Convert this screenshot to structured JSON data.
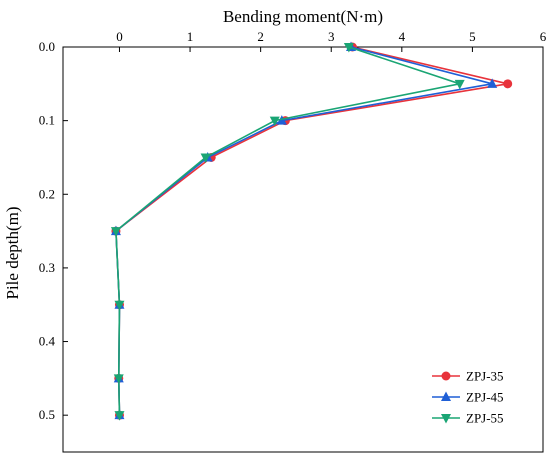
{
  "chart_data": {
    "type": "line",
    "title": "",
    "xlabel": "Bending moment(N·m)",
    "ylabel": "Pile depth(m)",
    "x_axis_position": "top",
    "y_axis_inverted": true,
    "xlim": [
      -0.8,
      6
    ],
    "ylim": [
      0,
      0.55
    ],
    "x_ticks": [
      0,
      1,
      2,
      3,
      4,
      5,
      6
    ],
    "y_ticks": [
      0.0,
      0.1,
      0.2,
      0.3,
      0.4,
      0.5
    ],
    "y_tick_labels": [
      "0.0",
      "0.1",
      "0.2",
      "0.3",
      "0.4",
      "0.5"
    ],
    "grid": false,
    "legend_position": "bottom-right",
    "series": [
      {
        "name": "ZPJ-35",
        "color": "#e8333b",
        "marker": "circle",
        "points": [
          {
            "depth": 0.0,
            "moment": 3.3
          },
          {
            "depth": 0.05,
            "moment": 5.5
          },
          {
            "depth": 0.1,
            "moment": 2.35
          },
          {
            "depth": 0.15,
            "moment": 1.3
          },
          {
            "depth": 0.25,
            "moment": -0.05
          },
          {
            "depth": 0.35,
            "moment": 0.0
          },
          {
            "depth": 0.45,
            "moment": -0.01
          },
          {
            "depth": 0.5,
            "moment": 0.0
          }
        ]
      },
      {
        "name": "ZPJ-45",
        "color": "#1f5fd6",
        "marker": "triangle-up",
        "points": [
          {
            "depth": 0.0,
            "moment": 3.28
          },
          {
            "depth": 0.05,
            "moment": 5.28
          },
          {
            "depth": 0.1,
            "moment": 2.3
          },
          {
            "depth": 0.15,
            "moment": 1.25
          },
          {
            "depth": 0.25,
            "moment": -0.05
          },
          {
            "depth": 0.35,
            "moment": 0.0
          },
          {
            "depth": 0.45,
            "moment": -0.01
          },
          {
            "depth": 0.5,
            "moment": 0.0
          }
        ]
      },
      {
        "name": "ZPJ-55",
        "color": "#1aa574",
        "marker": "triangle-down",
        "points": [
          {
            "depth": 0.0,
            "moment": 3.25
          },
          {
            "depth": 0.05,
            "moment": 4.82
          },
          {
            "depth": 0.1,
            "moment": 2.2
          },
          {
            "depth": 0.15,
            "moment": 1.22
          },
          {
            "depth": 0.25,
            "moment": -0.05
          },
          {
            "depth": 0.35,
            "moment": 0.0
          },
          {
            "depth": 0.45,
            "moment": -0.01
          },
          {
            "depth": 0.5,
            "moment": 0.0
          }
        ]
      }
    ]
  }
}
